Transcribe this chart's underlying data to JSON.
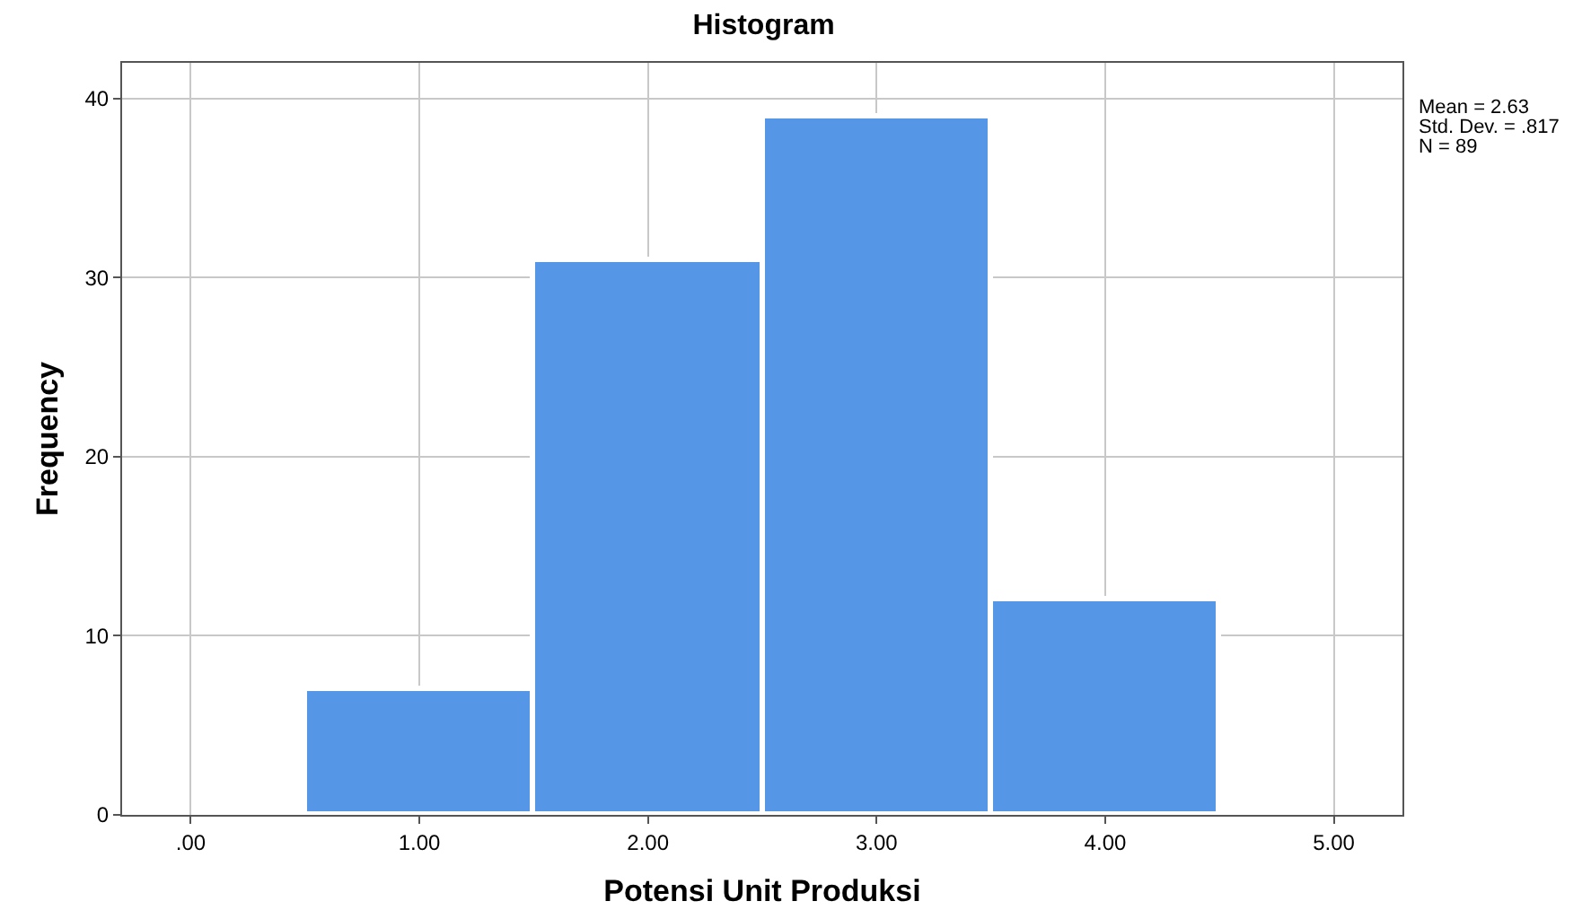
{
  "chart_data": {
    "type": "histogram",
    "title": "Histogram",
    "xlabel": "Potensi Unit Produksi",
    "ylabel": "Frequency",
    "bins": [
      0.5,
      1.5,
      2.5,
      3.5,
      4.5
    ],
    "values": [
      7,
      31,
      39,
      12
    ],
    "color": "#5596e6",
    "xlim": [
      -0.3,
      5.3
    ],
    "xticks": [
      {
        "value": 0,
        "label": ".00"
      },
      {
        "value": 1,
        "label": "1.00"
      },
      {
        "value": 2,
        "label": "2.00"
      },
      {
        "value": 3,
        "label": "3.00"
      },
      {
        "value": 4,
        "label": "4.00"
      },
      {
        "value": 5,
        "label": "5.00"
      }
    ],
    "ylim": [
      0,
      42
    ],
    "yticks": [
      0,
      10,
      20,
      30,
      40
    ],
    "grid": true,
    "annotations": [
      "Mean = 2.63",
      "Std. Dev. = .817",
      "N = 89"
    ]
  }
}
